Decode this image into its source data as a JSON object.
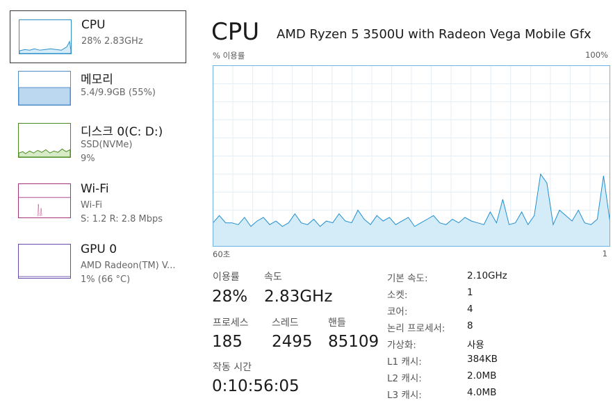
{
  "sidebar": {
    "items": [
      {
        "title": "CPU",
        "lines": [
          "28% 2.83GHz"
        ]
      },
      {
        "title": "메모리",
        "lines": [
          "5.4/9.9GB (55%)"
        ]
      },
      {
        "title": "디스크 0(C: D:)",
        "lines": [
          "SSD(NVMe)",
          "9%"
        ]
      },
      {
        "title": "Wi-Fi",
        "lines": [
          "Wi-Fi",
          "S: 1.2 R: 2.8 Mbps"
        ]
      },
      {
        "title": "GPU 0",
        "lines": [
          "AMD Radeon(TM) V...",
          "1% (66 °C)"
        ]
      }
    ]
  },
  "header": {
    "title": "CPU",
    "model": "AMD Ryzen 5 3500U with Radeon Vega Mobile Gfx"
  },
  "graph": {
    "label_left": "% 이용률",
    "label_right": "100%",
    "time_left": "60초",
    "time_right": "1",
    "ylim": [
      0,
      100
    ],
    "values": [
      13,
      17,
      13,
      13,
      12,
      16,
      11,
      14,
      16,
      12,
      14,
      11,
      13,
      18,
      13,
      12,
      15,
      11,
      14,
      13,
      18,
      14,
      13,
      20,
      15,
      12,
      17,
      14,
      16,
      12,
      14,
      16,
      11,
      13,
      15,
      17,
      13,
      12,
      15,
      13,
      16,
      14,
      13,
      12,
      19,
      13,
      26,
      12,
      13,
      19,
      12,
      17,
      40,
      35,
      12,
      20,
      17,
      14,
      20,
      13,
      12,
      15,
      39,
      14
    ]
  },
  "stats": {
    "utilization": {
      "label": "이용률",
      "value": "28%"
    },
    "speed": {
      "label": "속도",
      "value": "2.83GHz"
    },
    "processes": {
      "label": "프로세스",
      "value": "185"
    },
    "threads": {
      "label": "스레드",
      "value": "2495"
    },
    "handles": {
      "label": "핸들",
      "value": "85109"
    },
    "uptime": {
      "label": "작동 시간",
      "value": "0:10:56:05"
    }
  },
  "specs": {
    "rows": [
      [
        "기본 속도:",
        "2.10GHz"
      ],
      [
        "소켓:",
        "1"
      ],
      [
        "코어:",
        "4"
      ],
      [
        "논리 프로세서:",
        "8"
      ],
      [
        "가상화:",
        "사용"
      ],
      [
        "L1 캐시:",
        "384KB"
      ],
      [
        "L2 캐시:",
        "2.0MB"
      ],
      [
        "L3 캐시:",
        "4.0MB"
      ]
    ]
  }
}
